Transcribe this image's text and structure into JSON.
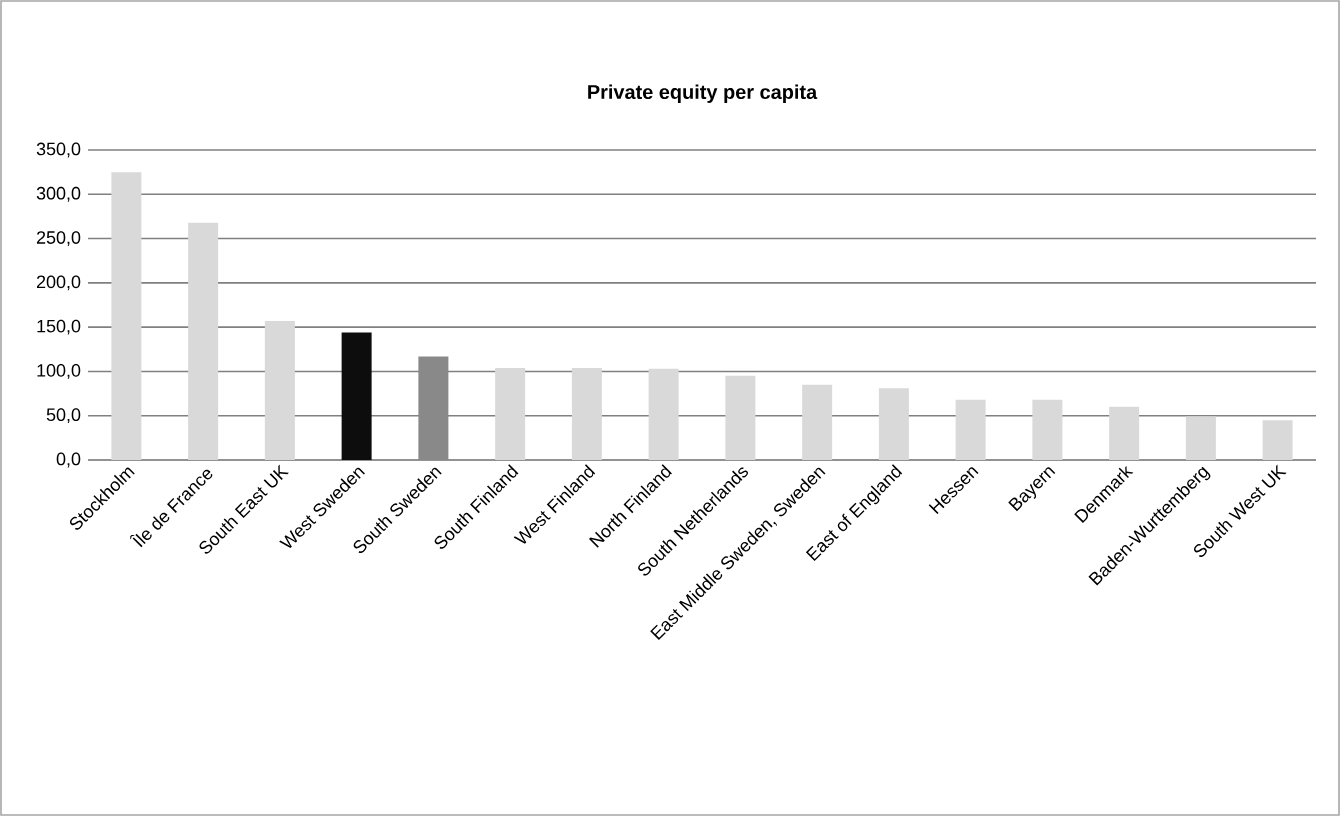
{
  "chart_data": {
    "type": "bar",
    "title": "Private equity per capita",
    "categories": [
      "Stockholm",
      "Île de France",
      "South East UK",
      "West Sweden",
      "South Sweden",
      "South Finland",
      "West Finland",
      "North Finland",
      "South Netherlands",
      "East Middle Sweden, Sweden",
      "East of England",
      "Hessen",
      "Bayern",
      "Denmark",
      "Baden-Wurttemberg",
      "South West UK"
    ],
    "values": [
      325,
      268,
      157,
      144,
      117,
      104,
      104,
      103,
      95,
      85,
      81,
      68,
      68,
      60,
      49,
      45
    ],
    "colors": [
      "#d9d9d9",
      "#d9d9d9",
      "#d9d9d9",
      "#0d0d0d",
      "#898989",
      "#d9d9d9",
      "#d9d9d9",
      "#d9d9d9",
      "#d9d9d9",
      "#d9d9d9",
      "#d9d9d9",
      "#d9d9d9",
      "#d9d9d9",
      "#d9d9d9",
      "#d9d9d9",
      "#d9d9d9"
    ],
    "ylim": [
      0,
      350
    ],
    "yticks": [
      {
        "value": 0,
        "label": "0,0"
      },
      {
        "value": 50,
        "label": "50,0"
      },
      {
        "value": 100,
        "label": "100,0"
      },
      {
        "value": 150,
        "label": "150,0"
      },
      {
        "value": 200,
        "label": "200,0"
      },
      {
        "value": 250,
        "label": "250,0"
      },
      {
        "value": 300,
        "label": "300,0"
      },
      {
        "value": 350,
        "label": "350,0"
      }
    ],
    "grid": "y"
  }
}
